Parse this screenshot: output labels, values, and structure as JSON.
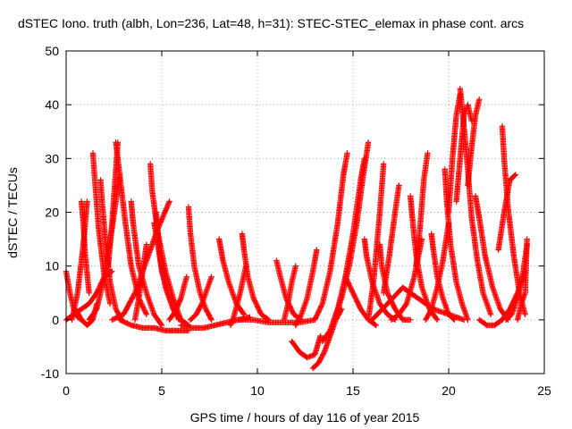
{
  "chart_data": {
    "type": "scatter",
    "title": "dSTEC Iono. truth (albh, Lon=236, Lat=48, h=31): STEC-STEC_elemax in phase cont. arcs",
    "xlabel": "GPS time / hours of day 116 of year 2015",
    "ylabel": "dSTEC  / TECUs",
    "xlim": [
      0,
      25
    ],
    "ylim": [
      -10,
      50
    ],
    "xticks": [
      0,
      5,
      10,
      15,
      20,
      25
    ],
    "yticks": [
      -10,
      0,
      10,
      20,
      30,
      40,
      50
    ],
    "grid": true,
    "marker": "plus",
    "color": "#ff0000",
    "series": [
      {
        "x": [
          0.0,
          0.2,
          0.4,
          0.6,
          0.8
        ],
        "y": [
          9,
          5,
          2,
          0.5,
          0
        ]
      },
      {
        "x": [
          0.0,
          0.4,
          0.8,
          1.2,
          1.6,
          2.0,
          2.4
        ],
        "y": [
          0,
          1,
          2,
          3,
          5,
          8,
          9
        ]
      },
      {
        "x": [
          0.3,
          0.6,
          0.9,
          1.1
        ],
        "y": [
          0,
          5,
          14,
          22
        ]
      },
      {
        "x": [
          0.8,
          0.9,
          1.0,
          1.2
        ],
        "y": [
          22,
          18,
          12,
          5
        ]
      },
      {
        "x": [
          0.5,
          0.8,
          1.1,
          1.4,
          1.6
        ],
        "y": [
          2,
          0,
          -1,
          0,
          3
        ]
      },
      {
        "x": [
          1.4,
          1.5,
          1.7,
          2.0,
          2.3
        ],
        "y": [
          31,
          26,
          17,
          8,
          3
        ]
      },
      {
        "x": [
          1.2,
          1.6,
          2.0,
          2.4,
          2.8
        ],
        "y": [
          0,
          2,
          8,
          17,
          27
        ]
      },
      {
        "x": [
          1.8,
          1.9,
          2.1,
          2.3,
          2.6,
          2.9
        ],
        "y": [
          26,
          21,
          13,
          7,
          2,
          0
        ]
      },
      {
        "x": [
          2.2,
          2.4,
          2.6,
          2.7
        ],
        "y": [
          10,
          18,
          28,
          33
        ]
      },
      {
        "x": [
          2.6,
          2.8,
          3.1,
          3.4,
          3.8,
          4.2
        ],
        "y": [
          33,
          27,
          18,
          10,
          4,
          1
        ]
      },
      {
        "x": [
          2.4,
          3.0,
          3.6,
          4.2,
          4.8,
          5.4
        ],
        "y": [
          0,
          1,
          5,
          11,
          17,
          22
        ]
      },
      {
        "x": [
          3.4,
          3.5,
          3.8,
          4.2,
          4.6,
          5.0
        ],
        "y": [
          22,
          18,
          10,
          5,
          1,
          -1
        ]
      },
      {
        "x": [
          3.6,
          3.8,
          4.0,
          4.2
        ],
        "y": [
          0,
          4,
          9,
          14
        ]
      },
      {
        "x": [
          4.4,
          4.5,
          4.8,
          5.2,
          5.6,
          6.0,
          6.4
        ],
        "y": [
          29,
          24,
          16,
          9,
          4,
          0,
          -1
        ]
      },
      {
        "x": [
          2.8,
          3.4,
          4.0,
          4.6,
          5.2,
          5.8,
          6.4
        ],
        "y": [
          0,
          -1,
          -1.5,
          -1.5,
          -2,
          -2,
          -2
        ]
      },
      {
        "x": [
          4.6,
          4.8,
          5.0,
          5.3,
          5.6,
          5.9
        ],
        "y": [
          18,
          14,
          9,
          5,
          2,
          0
        ]
      },
      {
        "x": [
          4.7,
          4.9,
          5.2,
          5.6,
          6.0
        ],
        "y": [
          20,
          12,
          6,
          2,
          0
        ]
      },
      {
        "x": [
          5.4,
          5.7,
          6.0,
          6.3
        ],
        "y": [
          0,
          1.5,
          4,
          8
        ]
      },
      {
        "x": [
          6.4,
          6.5,
          6.7,
          7.0,
          7.3,
          7.6
        ],
        "y": [
          21,
          16,
          10,
          5,
          2,
          0
        ]
      },
      {
        "x": [
          6.5,
          6.8,
          7.1,
          7.4,
          7.6
        ],
        "y": [
          0,
          1,
          3,
          6,
          8
        ]
      },
      {
        "x": [
          6.0,
          6.6,
          7.2,
          7.8,
          8.4,
          9.0,
          9.6
        ],
        "y": [
          -1,
          -1.5,
          -1.5,
          -1,
          -0.5,
          0,
          0.5
        ]
      },
      {
        "x": [
          8.0,
          8.2,
          8.5,
          8.9,
          9.3
        ],
        "y": [
          15,
          11,
          7,
          3,
          1
        ]
      },
      {
        "x": [
          8.6,
          8.8,
          9.1,
          9.4
        ],
        "y": [
          -1,
          1,
          5,
          10
        ]
      },
      {
        "x": [
          9.2,
          9.3,
          9.5,
          9.8,
          10.2,
          10.6
        ],
        "y": [
          16,
          13,
          8,
          4,
          1,
          0
        ]
      },
      {
        "x": [
          9.0,
          9.8,
          10.6,
          11.4,
          12.2,
          13.0
        ],
        "y": [
          0,
          0,
          -0.5,
          -0.5,
          -0.5,
          0
        ]
      },
      {
        "x": [
          11.0,
          11.2,
          11.5,
          11.9,
          12.3
        ],
        "y": [
          11,
          8,
          4,
          1,
          0
        ]
      },
      {
        "x": [
          11.4,
          11.6,
          11.8,
          12.0
        ],
        "y": [
          0,
          3,
          7,
          10
        ]
      },
      {
        "x": [
          12.0,
          12.3,
          12.6,
          12.9,
          13.1
        ],
        "y": [
          -1,
          1,
          4,
          9,
          13
        ]
      },
      {
        "x": [
          11.8,
          12.2,
          12.6,
          13.0,
          13.3
        ],
        "y": [
          -4,
          -6,
          -7,
          -6.5,
          -3
        ]
      },
      {
        "x": [
          12.9,
          13.2,
          13.5,
          13.8,
          14.1,
          14.4
        ],
        "y": [
          -9,
          -8,
          -6,
          -3,
          0,
          2
        ]
      },
      {
        "x": [
          13.0,
          13.4,
          13.8,
          14.2,
          14.5,
          14.7
        ],
        "y": [
          0,
          3,
          9,
          18,
          27,
          31
        ]
      },
      {
        "x": [
          13.4,
          13.8,
          14.2,
          14.6,
          15.0,
          15.4,
          15.6
        ],
        "y": [
          -4,
          -2,
          2,
          8,
          16,
          26,
          30
        ]
      },
      {
        "x": [
          14.0,
          14.4,
          14.8,
          15.2,
          15.5,
          15.8
        ],
        "y": [
          0,
          4,
          10,
          18,
          26,
          33
        ]
      },
      {
        "x": [
          14.6,
          15.0,
          15.4,
          15.8,
          16.2
        ],
        "y": [
          8,
          5,
          2,
          0,
          -1
        ]
      },
      {
        "x": [
          15.6,
          15.7,
          16.0,
          16.4,
          16.8,
          17.2
        ],
        "y": [
          15,
          12,
          7,
          3,
          1,
          0
        ]
      },
      {
        "x": [
          15.8,
          16.1,
          16.4,
          16.6
        ],
        "y": [
          0,
          8,
          20,
          29
        ]
      },
      {
        "x": [
          16.4,
          16.5,
          16.8,
          17.2,
          17.6,
          18.0
        ],
        "y": [
          14,
          10,
          5,
          2,
          0,
          0
        ]
      },
      {
        "x": [
          16.6,
          16.9,
          17.2,
          17.4
        ],
        "y": [
          5,
          12,
          20,
          25
        ]
      },
      {
        "x": [
          16.0,
          16.8,
          17.6,
          18.4,
          19.2,
          20.0,
          20.8
        ],
        "y": [
          0,
          3,
          6,
          4,
          2,
          1,
          0
        ]
      },
      {
        "x": [
          17.0,
          17.4,
          17.8,
          18.2,
          18.6
        ],
        "y": [
          0,
          1,
          3,
          8,
          15
        ]
      },
      {
        "x": [
          18.0,
          18.1,
          18.3,
          18.6,
          19.0,
          19.4
        ],
        "y": [
          23,
          19,
          12,
          6,
          2,
          0
        ]
      },
      {
        "x": [
          18.3,
          18.5,
          18.7,
          18.9
        ],
        "y": [
          10,
          17,
          26,
          31
        ]
      },
      {
        "x": [
          18.8,
          19.1,
          19.4,
          19.7,
          20.0
        ],
        "y": [
          0,
          2,
          6,
          11,
          18
        ]
      },
      {
        "x": [
          19.1,
          19.2,
          19.4,
          19.7,
          20.0,
          20.3
        ],
        "y": [
          16,
          13,
          8,
          4,
          1,
          0
        ]
      },
      {
        "x": [
          19.8,
          19.9,
          20.1,
          20.4,
          20.7,
          21.0
        ],
        "y": [
          28,
          22,
          14,
          7,
          3,
          0
        ]
      },
      {
        "x": [
          20.0,
          20.2,
          20.4,
          20.6
        ],
        "y": [
          20,
          30,
          38,
          42
        ]
      },
      {
        "x": [
          20.6,
          20.8,
          21.0,
          21.2,
          21.5,
          21.8,
          22.2
        ],
        "y": [
          43,
          36,
          28,
          19,
          11,
          5,
          1
        ]
      },
      {
        "x": [
          20.4,
          20.6,
          20.8,
          21.0,
          21.2
        ],
        "y": [
          22,
          30,
          38,
          40,
          37
        ]
      },
      {
        "x": [
          21.0,
          21.2,
          21.4,
          21.6
        ],
        "y": [
          25,
          32,
          38,
          41
        ]
      },
      {
        "x": [
          21.4,
          21.6,
          21.9,
          22.3,
          22.7,
          23.1
        ],
        "y": [
          23,
          19,
          12,
          6,
          2,
          0
        ]
      },
      {
        "x": [
          21.6,
          22.0,
          22.4,
          22.8,
          23.2,
          23.6,
          24.0
        ],
        "y": [
          0,
          -1,
          -1,
          0,
          2,
          5,
          9
        ]
      },
      {
        "x": [
          22.8,
          22.9,
          23.1,
          23.4,
          23.7,
          24.0
        ],
        "y": [
          36,
          30,
          21,
          12,
          5,
          1
        ]
      },
      {
        "x": [
          22.6,
          22.9,
          23.2,
          23.5
        ],
        "y": [
          13,
          20,
          26,
          27
        ]
      },
      {
        "x": [
          23.0,
          23.3,
          23.6,
          23.9,
          24.1
        ],
        "y": [
          0,
          1,
          4,
          9,
          14
        ]
      },
      {
        "x": [
          23.6,
          23.8,
          24.0,
          24.1
        ],
        "y": [
          0,
          3,
          5,
          15
        ]
      }
    ]
  }
}
